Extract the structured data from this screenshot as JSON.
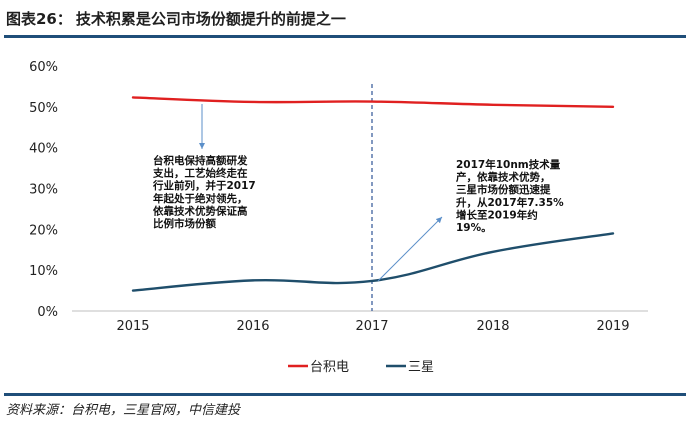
{
  "figure": {
    "label": "图表26：",
    "title": "技术积累是公司市场份额提升的前提之一"
  },
  "source": "资料来源：台积电，三星官网，中信建投",
  "chart_data": {
    "type": "line",
    "title": "技术积累是公司市场份额提升的前提之一",
    "xlabel": "",
    "ylabel": "",
    "categories": [
      "2015",
      "2016",
      "2017",
      "2018",
      "2019"
    ],
    "y_ticks": [
      "0%",
      "10%",
      "20%",
      "30%",
      "40%",
      "50%",
      "60%"
    ],
    "ylim": [
      0,
      60
    ],
    "grid": false,
    "legend_position": "bottom",
    "series": [
      {
        "name": "台积电",
        "color": "#e02020",
        "values": [
          52.3,
          51.2,
          51.3,
          50.5,
          50.0
        ]
      },
      {
        "name": "三星",
        "color": "#1f4e6b",
        "values": [
          5.0,
          7.5,
          7.35,
          14.5,
          19.0
        ]
      }
    ],
    "reference_line": {
      "x": "2017",
      "style": "dashed",
      "color": "#2f5597"
    },
    "annotations": [
      {
        "lines": [
          "台积电保持高额研发",
          "支出，工艺始终走在",
          "行业前列，并于2017",
          "年起处于绝对领先，",
          "依靠技术优势保证高",
          "比例市场份额"
        ]
      },
      {
        "lines": [
          "2017年10nm技术量",
          "产，依靠技术优势，",
          "三星市场份额迅速提",
          "升，从2017年7.35%",
          "增长至2019年约",
          "19%。"
        ]
      }
    ]
  }
}
